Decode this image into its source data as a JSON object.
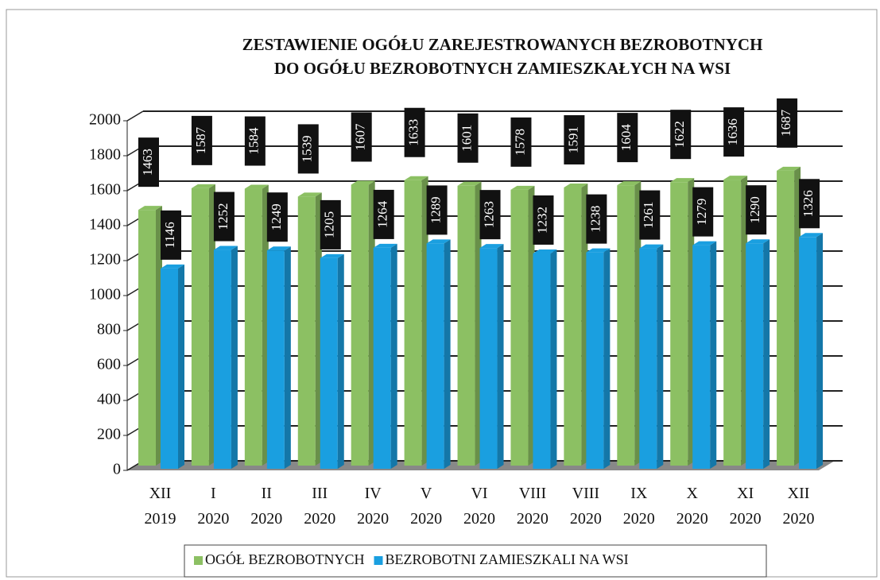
{
  "chart_data": {
    "type": "bar3d",
    "title": [
      "ZESTAWIENIE OGÓŁU ZAREJESTROWANYCH BEZROBOTNYCH",
      "DO OGÓŁU BEZROBOTNYCH ZAMIESZKAŁYCH NA WSI"
    ],
    "categories": [
      "XII 2019",
      "I 2020",
      "II 2020",
      "III 2020",
      "IV 2020",
      "V 2020",
      "VI 2020",
      "VIII 2020",
      "VIII 2020",
      "IX 2020",
      "X 2020",
      "XI 2020",
      "XII 2020"
    ],
    "series": [
      {
        "name": "OGÓŁ BEZROBOTNYCH",
        "color": "#8cc063",
        "values": [
          1463,
          1587,
          1584,
          1539,
          1607,
          1633,
          1601,
          1578,
          1591,
          1604,
          1622,
          1636,
          1687
        ]
      },
      {
        "name": "BEZROBOTNI ZAMIESZKALI NA WSI",
        "color": "#1a9fe0",
        "values": [
          1146,
          1252,
          1249,
          1205,
          1264,
          1289,
          1263,
          1232,
          1238,
          1261,
          1279,
          1290,
          1326
        ]
      }
    ],
    "ylim": [
      0,
      2000
    ],
    "yticks": [
      0,
      200,
      400,
      600,
      800,
      1000,
      1200,
      1400,
      1600,
      1800,
      2000
    ],
    "grid": true,
    "legend": "bottom"
  }
}
